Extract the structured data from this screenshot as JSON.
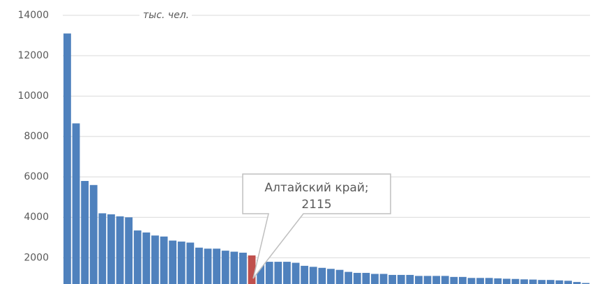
{
  "chart_data": {
    "type": "bar",
    "unit_label": "тыс. чел.",
    "annotation": "Алтайский край;",
    "highlight": 21,
    "color": "#4f81bd",
    "highlight_color": "#c0504d",
    "values": [
      13100,
      8650,
      5800,
      5600,
      4200,
      4150,
      4050,
      4000,
      3350,
      3250,
      3100,
      3050,
      2850,
      2800,
      2750,
      2500,
      2450,
      2450,
      2350,
      2300,
      2250,
      2115,
      1900,
      1800,
      1800,
      1800,
      1750,
      1600,
      1550,
      1500,
      1450,
      1400,
      1300,
      1250,
      1250,
      1200,
      1200,
      1150,
      1150,
      1150,
      1100,
      1100,
      1100,
      1100,
      1050,
      1050,
      1000,
      1000,
      1000,
      980,
      960,
      950,
      930,
      920,
      900,
      900,
      880,
      860,
      800,
      750
    ],
    "ylim": [
      700,
      14000
    ],
    "yticks": [
      2000,
      4000,
      6000,
      8000,
      10000,
      12000,
      14000
    ],
    "grid": true
  }
}
